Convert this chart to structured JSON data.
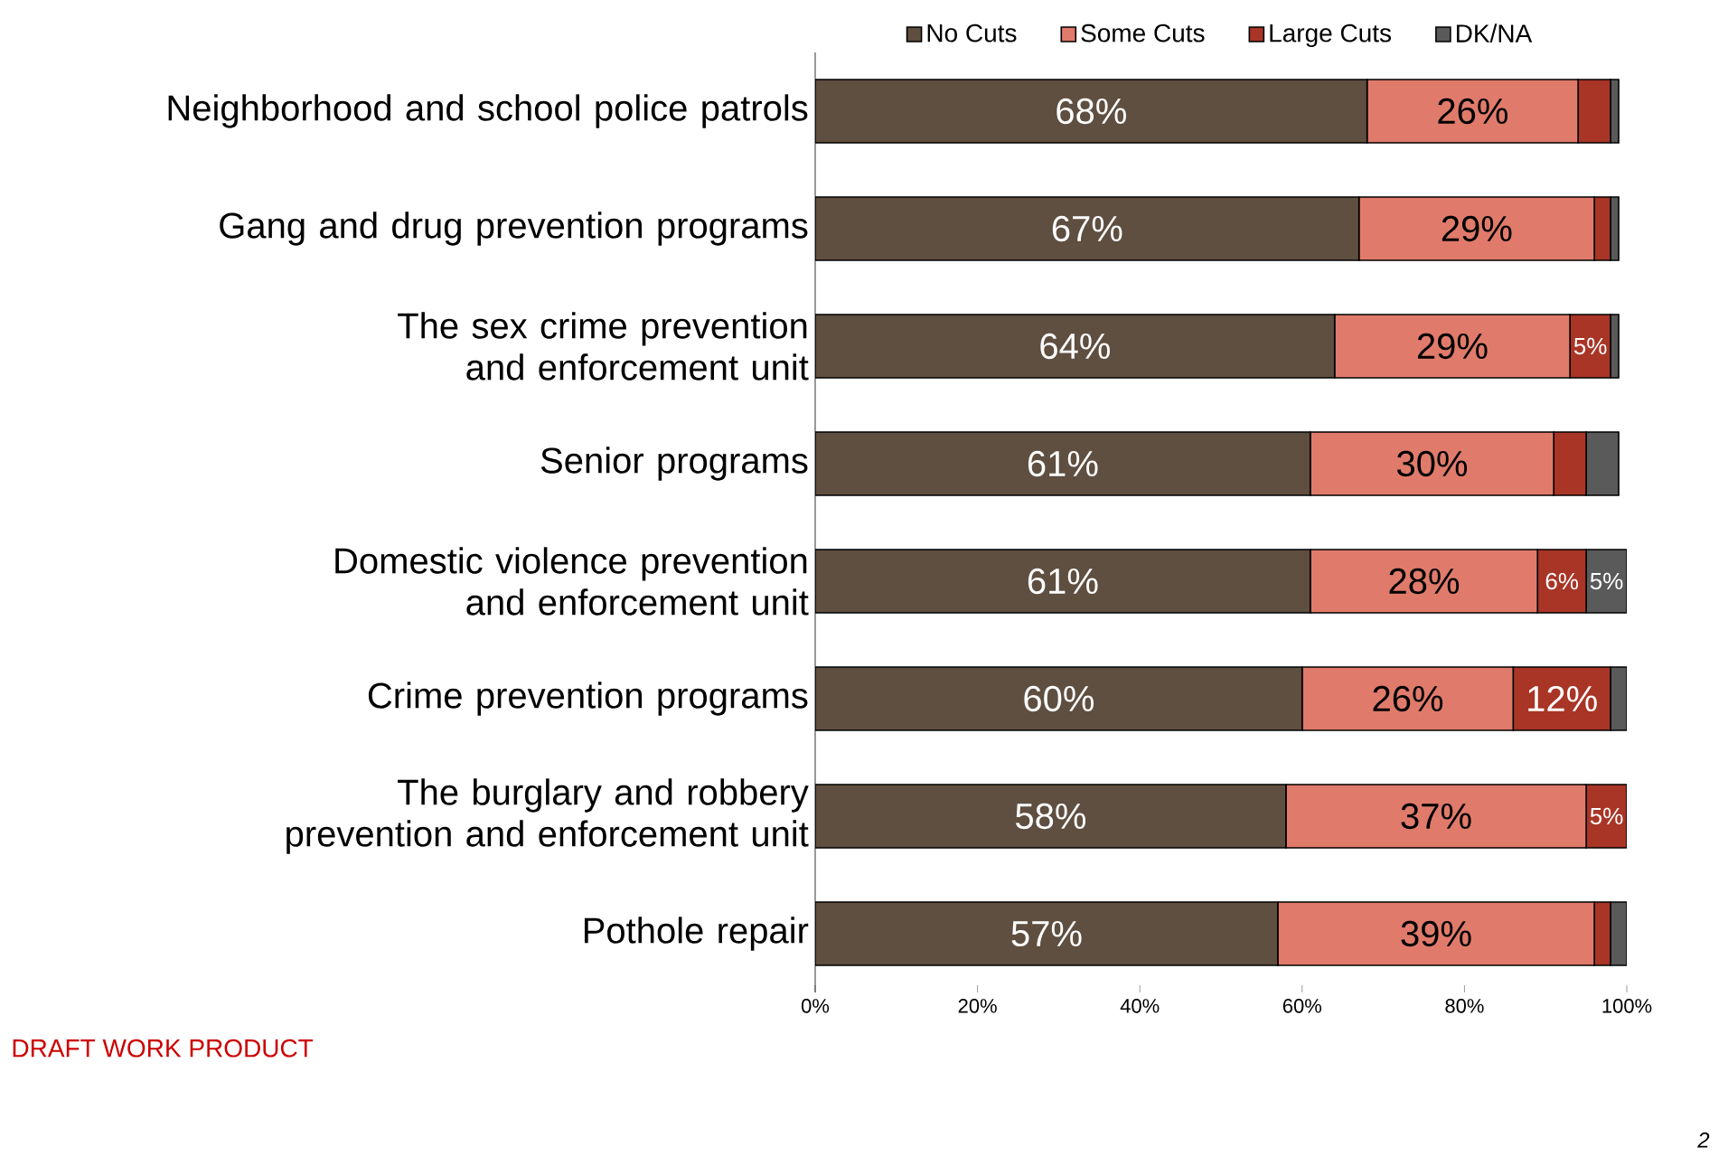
{
  "chart_data": {
    "type": "bar",
    "orientation": "horizontal",
    "stacked": true,
    "categories": [
      "Neighborhood and school police patrols",
      "Gang and drug prevention programs",
      "The sex crime prevention and enforcement unit",
      "Senior programs",
      "Domestic violence prevention and enforcement unit",
      "Crime prevention programs",
      "The burglary and robbery prevention and enforcement unit",
      "Pothole repair"
    ],
    "series": [
      {
        "name": "No Cuts",
        "color": "#5f4f41",
        "values": [
          68,
          67,
          64,
          61,
          61,
          60,
          58,
          57
        ],
        "value_labels": [
          "68%",
          "67%",
          "64%",
          "61%",
          "61%",
          "60%",
          "58%",
          "57%"
        ]
      },
      {
        "name": "Some Cuts",
        "color": "#e07b6b",
        "values": [
          26,
          29,
          29,
          30,
          28,
          26,
          37,
          39
        ],
        "value_labels": [
          "26%",
          "29%",
          "29%",
          "30%",
          "28%",
          "26%",
          "37%",
          "39%"
        ]
      },
      {
        "name": "Large Cuts",
        "color": "#a93526",
        "values": [
          4,
          2,
          5,
          4,
          6,
          12,
          5,
          2
        ],
        "value_labels": [
          null,
          null,
          "5%",
          null,
          "6%",
          "12%",
          "5%",
          null
        ]
      },
      {
        "name": "DK/NA",
        "color": "#5a5a5a",
        "values": [
          1,
          1,
          1,
          4,
          5,
          2,
          0,
          2
        ],
        "value_labels": [
          null,
          null,
          null,
          null,
          "5%",
          null,
          null,
          null
        ]
      }
    ],
    "xlim": [
      0,
      100
    ],
    "xticks": [
      {
        "value": 0,
        "label": "0%"
      },
      {
        "value": 20,
        "label": "20%"
      },
      {
        "value": 40,
        "label": "40%"
      },
      {
        "value": 60,
        "label": "60%"
      },
      {
        "value": 80,
        "label": "80%"
      },
      {
        "value": 100,
        "label": "100%"
      }
    ],
    "legend": "top",
    "annotations": [
      "DRAFT WORK PRODUCT",
      "2"
    ]
  }
}
